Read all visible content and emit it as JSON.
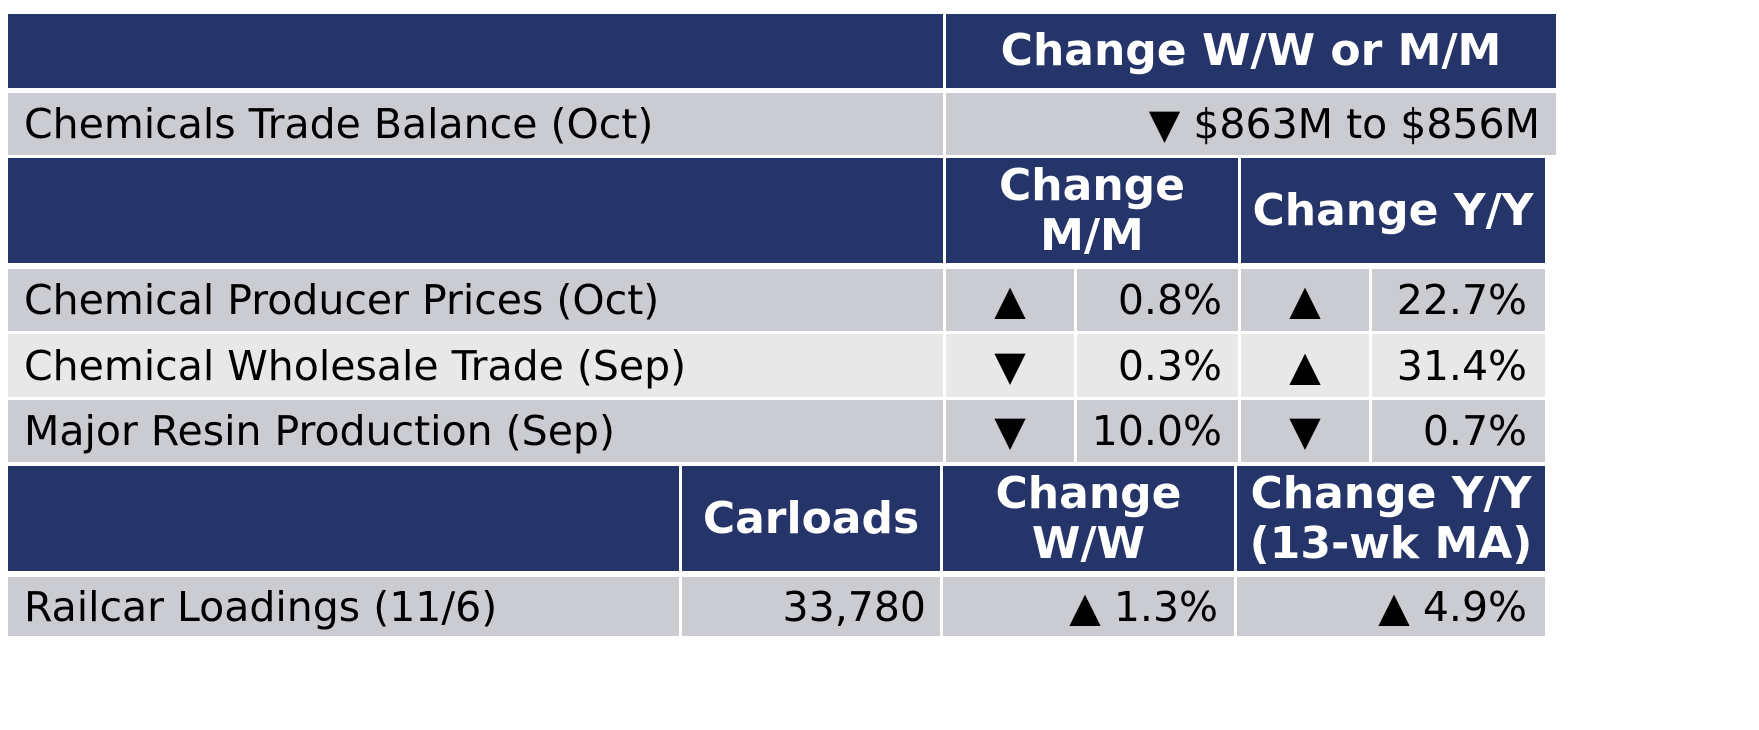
{
  "header_top": {
    "title": "Change W/W or M/M"
  },
  "trade_balance": {
    "label": "Chemicals Trade Balance (Oct)",
    "value": "▼ $863M to $856M"
  },
  "section2": {
    "col1": [
      "Change",
      "M/M"
    ],
    "col2": "Change Y/Y"
  },
  "rows": [
    {
      "label": "Chemical Producer Prices (Oct)",
      "mm_dir": "▲",
      "mm": "0.8%",
      "yy_dir": "▲",
      "yy": "22.7%"
    },
    {
      "label": "Chemical Wholesale Trade (Sep)",
      "mm_dir": "▼",
      "mm": "0.3%",
      "yy_dir": "▲",
      "yy": "31.4%"
    },
    {
      "label": "Major Resin Production (Sep)",
      "mm_dir": "▼",
      "mm": "10.0%",
      "yy_dir": "▼",
      "yy": "0.7%"
    }
  ],
  "section3": {
    "carloads": "Carloads",
    "ww": [
      "Change",
      "W/W"
    ],
    "yy": [
      "Change Y/Y",
      "(13-wk MA)"
    ]
  },
  "railcar": {
    "label": "Railcar Loadings (11/6)",
    "carloads": "33,780",
    "ww": "▲ 1.3%",
    "yy": "▲ 4.9%"
  }
}
